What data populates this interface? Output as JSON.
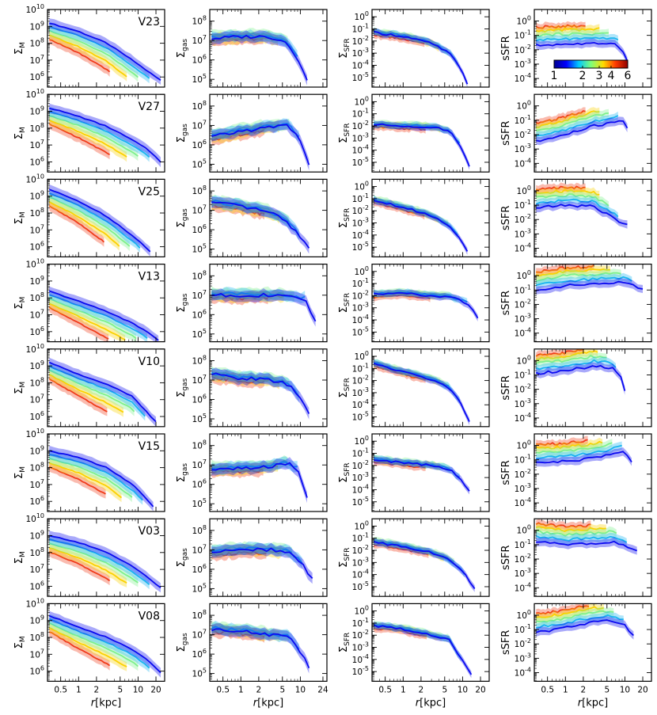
{
  "chart_data": {
    "type": "line",
    "description_note": "Radial profiles (log-log) with shaded scatter bands for 8 simulated galaxies; color encodes redshift-like index",
    "row_labels": [
      "V23",
      "V27",
      "V25",
      "V13",
      "V10",
      "V15",
      "V03",
      "V08"
    ],
    "columns": [
      {
        "key": "sigma_m",
        "ylabel_main": "Σ",
        "ylabel_sub": "M",
        "ytick_exponents": [
          6,
          7,
          8,
          9,
          10
        ],
        "ylim_log": [
          5.4,
          10
        ],
        "xticks": [
          "0.5",
          "1",
          "2",
          "5",
          "10",
          "20"
        ]
      },
      {
        "key": "sigma_gas",
        "ylabel_main": "Σ",
        "ylabel_sub": "gas",
        "ytick_exponents": [
          5,
          6,
          7,
          8
        ],
        "ylim_log": [
          4.6,
          8.6
        ],
        "xticks": [
          "0.5",
          "1",
          "2",
          "5",
          "10",
          "24"
        ]
      },
      {
        "key": "sigma_sfr",
        "ylabel_main": "Σ",
        "ylabel_sub": "SFR",
        "ytick_exponents": [
          -5,
          -4,
          -3,
          -2,
          -1,
          0
        ],
        "ylim_log": [
          -5.8,
          0.6
        ],
        "xticks": [
          "0.5",
          "1",
          "2",
          "5",
          "10",
          "20"
        ]
      },
      {
        "key": "ssfr",
        "ylabel_main": "sSFR",
        "ylabel_sub": "",
        "ytick_exponents": [
          -4,
          -3,
          -2,
          -1,
          0
        ],
        "ylim_log": [
          -4.6,
          0.8
        ],
        "xticks": [
          "0.5",
          "1",
          "2",
          "5",
          "10",
          "20"
        ]
      }
    ],
    "xlabel": "r [kpc]",
    "xlabel_italic": "r",
    "xlabel_unit": "[kpc]",
    "xlim": [
      0.3,
      28
    ],
    "xscale": "log",
    "tick_base": "10",
    "colorbar": {
      "ticks": [
        "1",
        "2",
        "3",
        "4",
        "6"
      ],
      "range": [
        1,
        6
      ]
    },
    "series_colors": [
      "#0a0af0",
      "#19b4f0",
      "#7df08c",
      "#fad200",
      "#f03c19"
    ],
    "band_alpha": 0.35,
    "profiles": {
      "sigma_m": [
        [
          [
            0.32,
            9.2
          ],
          [
            1,
            8.7
          ],
          [
            3,
            8.0
          ],
          [
            8,
            7.0
          ],
          [
            15,
            6.3
          ],
          [
            24,
            5.8
          ]
        ],
        [
          [
            0.32,
            9.2
          ],
          [
            1,
            8.7
          ],
          [
            3,
            8.1
          ],
          [
            8,
            7.3
          ],
          [
            15,
            6.7
          ],
          [
            24,
            6.0
          ]
        ],
        [
          [
            0.32,
            9.4
          ],
          [
            1,
            8.7
          ],
          [
            3,
            7.8
          ],
          [
            6,
            7.0
          ],
          [
            10,
            6.4
          ],
          [
            16,
            5.7
          ]
        ],
        [
          [
            0.32,
            8.4
          ],
          [
            1,
            7.8
          ],
          [
            3,
            7.2
          ],
          [
            8,
            6.5
          ],
          [
            14,
            6.0
          ],
          [
            22,
            5.5
          ]
        ],
        [
          [
            0.32,
            9.2
          ],
          [
            1,
            8.5
          ],
          [
            3,
            7.9
          ],
          [
            8,
            7.2
          ],
          [
            12,
            6.5
          ],
          [
            20,
            5.7
          ]
        ],
        [
          [
            0.32,
            9.0
          ],
          [
            1,
            8.6
          ],
          [
            3,
            8.0
          ],
          [
            8,
            7.0
          ],
          [
            12,
            6.4
          ],
          [
            18,
            5.7
          ]
        ],
        [
          [
            0.32,
            9.0
          ],
          [
            1,
            8.6
          ],
          [
            3,
            8.0
          ],
          [
            8,
            7.2
          ],
          [
            15,
            6.5
          ],
          [
            24,
            5.9
          ]
        ],
        [
          [
            0.32,
            9.3
          ],
          [
            1,
            8.6
          ],
          [
            3,
            8.0
          ],
          [
            8,
            7.3
          ],
          [
            15,
            6.6
          ],
          [
            24,
            5.9
          ]
        ]
      ],
      "sigma_gas": [
        [
          [
            0.32,
            7.1
          ],
          [
            1,
            7.2
          ],
          [
            3,
            7.2
          ],
          [
            6,
            6.9
          ],
          [
            9,
            6.1
          ],
          [
            13,
            4.9
          ]
        ],
        [
          [
            0.32,
            6.4
          ],
          [
            1,
            6.7
          ],
          [
            3,
            6.9
          ],
          [
            6,
            7.0
          ],
          [
            9,
            6.5
          ],
          [
            14,
            5.0
          ]
        ],
        [
          [
            0.32,
            7.4
          ],
          [
            1,
            7.2
          ],
          [
            3,
            6.9
          ],
          [
            6,
            6.4
          ],
          [
            9,
            5.8
          ],
          [
            14,
            5.0
          ]
        ],
        [
          [
            0.32,
            7.0
          ],
          [
            1,
            7.0
          ],
          [
            3,
            7.0
          ],
          [
            6,
            6.9
          ],
          [
            12,
            6.8
          ],
          [
            18,
            5.6
          ]
        ],
        [
          [
            0.32,
            7.3
          ],
          [
            1,
            7.1
          ],
          [
            3,
            7.0
          ],
          [
            6,
            6.8
          ],
          [
            9,
            6.3
          ],
          [
            14,
            5.2
          ]
        ],
        [
          [
            0.32,
            6.8
          ],
          [
            1,
            6.8
          ],
          [
            3,
            6.9
          ],
          [
            6,
            7.1
          ],
          [
            9,
            6.8
          ],
          [
            13,
            5.4
          ]
        ],
        [
          [
            0.32,
            6.9
          ],
          [
            1,
            7.0
          ],
          [
            3,
            7.0
          ],
          [
            6,
            6.9
          ],
          [
            10,
            6.4
          ],
          [
            16,
            5.5
          ]
        ],
        [
          [
            0.32,
            7.3
          ],
          [
            1,
            7.2
          ],
          [
            3,
            7.0
          ],
          [
            6,
            6.9
          ],
          [
            9,
            6.4
          ],
          [
            14,
            5.3
          ]
        ]
      ],
      "sigma_sfr": [
        [
          [
            0.32,
            -1.3
          ],
          [
            1,
            -1.6
          ],
          [
            3,
            -2.2
          ],
          [
            6,
            -3.0
          ],
          [
            9,
            -4.2
          ],
          [
            12,
            -5.5
          ]
        ],
        [
          [
            0.32,
            -1.9
          ],
          [
            1,
            -2.0
          ],
          [
            3,
            -2.1
          ],
          [
            6,
            -2.4
          ],
          [
            9,
            -3.5
          ],
          [
            13,
            -5.4
          ]
        ],
        [
          [
            0.32,
            -1.1
          ],
          [
            1,
            -1.7
          ],
          [
            3,
            -2.4
          ],
          [
            6,
            -3.2
          ],
          [
            9,
            -4.3
          ],
          [
            12,
            -5.3
          ]
        ],
        [
          [
            0.32,
            -1.9
          ],
          [
            1,
            -1.8
          ],
          [
            3,
            -2.0
          ],
          [
            6,
            -2.1
          ],
          [
            12,
            -2.6
          ],
          [
            18,
            -3.8
          ]
        ],
        [
          [
            0.32,
            -0.6
          ],
          [
            1,
            -1.3
          ],
          [
            3,
            -1.9
          ],
          [
            6,
            -2.6
          ],
          [
            9,
            -3.8
          ],
          [
            13,
            -5.4
          ]
        ],
        [
          [
            0.32,
            -1.5
          ],
          [
            1,
            -1.8
          ],
          [
            3,
            -2.0
          ],
          [
            6,
            -2.3
          ],
          [
            9,
            -3.1
          ],
          [
            13,
            -4.2
          ]
        ],
        [
          [
            0.32,
            -1.3
          ],
          [
            1,
            -1.7
          ],
          [
            3,
            -2.2
          ],
          [
            6,
            -2.8
          ],
          [
            10,
            -3.7
          ],
          [
            16,
            -5.2
          ]
        ],
        [
          [
            0.32,
            -1.2
          ],
          [
            1,
            -1.5
          ],
          [
            3,
            -2.0
          ],
          [
            6,
            -2.4
          ],
          [
            9,
            -3.8
          ],
          [
            14,
            -5.2
          ]
        ]
      ],
      "ssfr": [
        [
          [
            0.32,
            -1.7
          ],
          [
            1,
            -1.6
          ],
          [
            3,
            -1.6
          ],
          [
            6,
            -1.5
          ],
          [
            9,
            -1.9
          ],
          [
            11,
            -2.8
          ]
        ],
        [
          [
            0.32,
            -2.5
          ],
          [
            1,
            -2.0
          ],
          [
            3,
            -1.4
          ],
          [
            6,
            -1.2
          ],
          [
            9,
            -1.0
          ],
          [
            11,
            -1.5
          ]
        ],
        [
          [
            0.32,
            -1.2
          ],
          [
            1,
            -1.0
          ],
          [
            3,
            -1.1
          ],
          [
            6,
            -1.8
          ],
          [
            9,
            -2.3
          ],
          [
            11,
            -2.3
          ]
        ],
        [
          [
            0.32,
            -1.0
          ],
          [
            1,
            -0.7
          ],
          [
            3,
            -0.6
          ],
          [
            6,
            -0.5
          ],
          [
            10,
            -0.5
          ],
          [
            20,
            -0.9
          ]
        ],
        [
          [
            0.32,
            -0.9
          ],
          [
            1,
            -0.7
          ],
          [
            3,
            -0.4
          ],
          [
            6,
            -0.5
          ],
          [
            9,
            -1.3
          ],
          [
            10,
            -2.1
          ]
        ],
        [
          [
            0.32,
            -1.2
          ],
          [
            1,
            -1.1
          ],
          [
            3,
            -0.9
          ],
          [
            6,
            -0.6
          ],
          [
            9,
            -0.4
          ],
          [
            13,
            -1.1
          ]
        ],
        [
          [
            0.32,
            -0.8
          ],
          [
            1,
            -1.0
          ],
          [
            3,
            -0.9
          ],
          [
            6,
            -0.8
          ],
          [
            10,
            -1.1
          ],
          [
            16,
            -1.4
          ]
        ],
        [
          [
            0.32,
            -1.2
          ],
          [
            1,
            -0.9
          ],
          [
            3,
            -0.5
          ],
          [
            6,
            -0.4
          ],
          [
            10,
            -0.7
          ],
          [
            14,
            -1.5
          ]
        ]
      ]
    },
    "series_offsets": {
      "sigma_m": [
        0,
        -0.35,
        -0.75,
        -1.2,
        -1.6
      ],
      "sigma_gas": [
        0,
        0.05,
        0.1,
        -0.05,
        -0.15
      ],
      "sigma_sfr": [
        0,
        0.05,
        0.1,
        0.0,
        -0.2
      ],
      "ssfr": [
        0,
        0.35,
        0.7,
        1.0,
        1.25
      ]
    },
    "series_cutoff": [
      1.0,
      0.9,
      0.8,
      0.7,
      0.55
    ]
  }
}
